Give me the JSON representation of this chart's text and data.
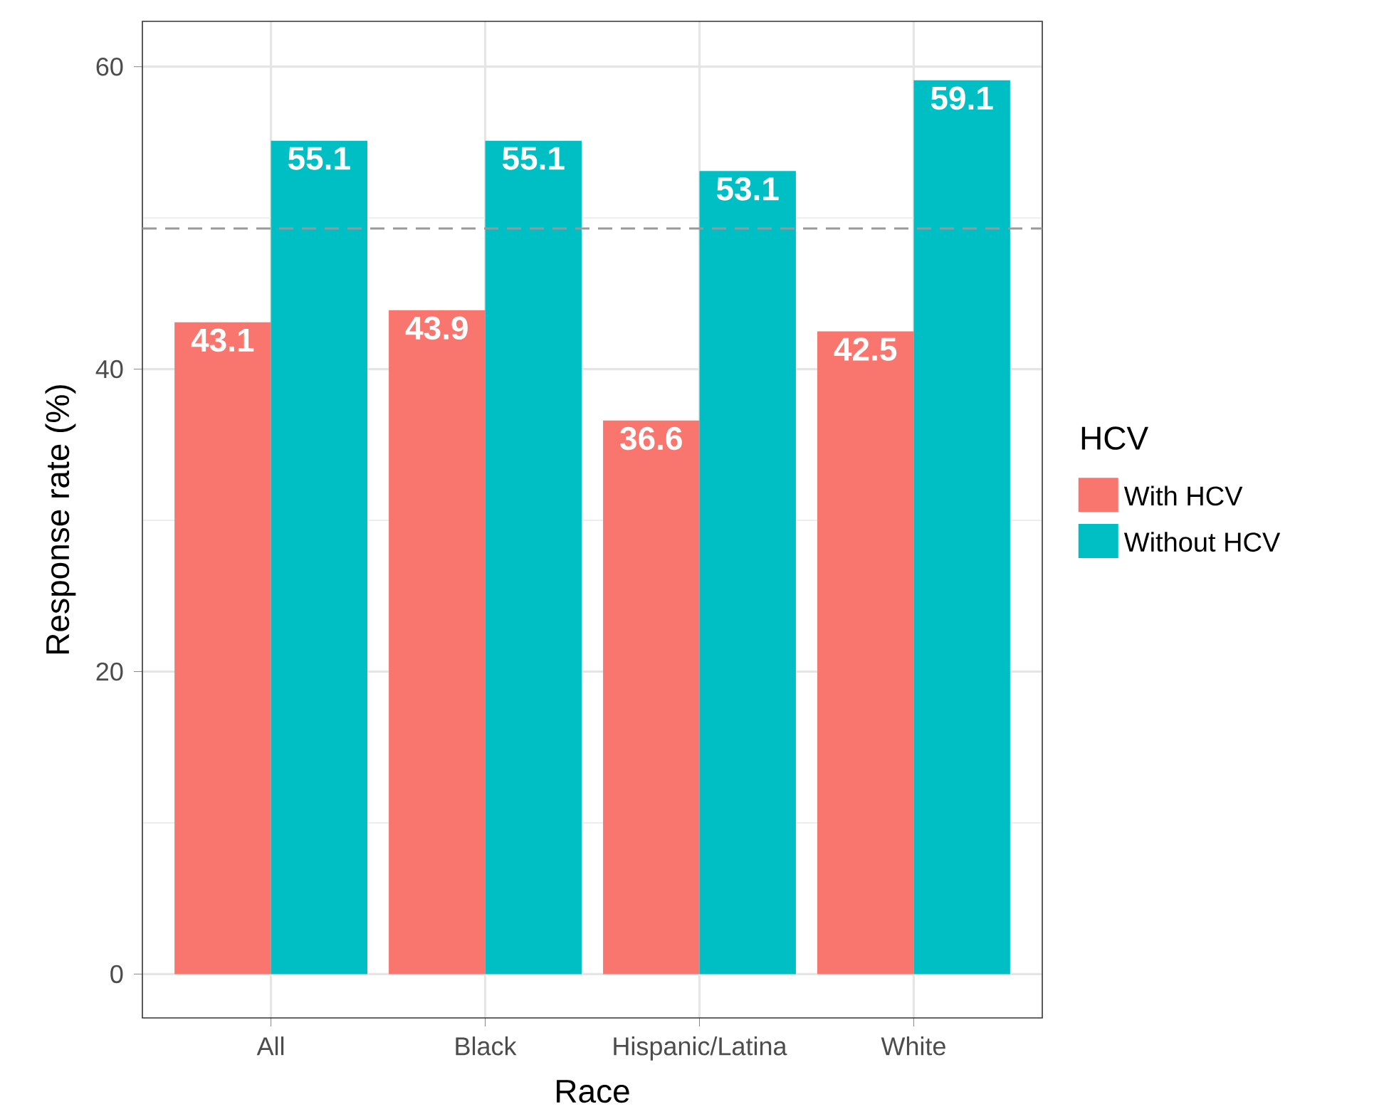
{
  "chart_data": {
    "type": "bar",
    "xlabel": "Race",
    "ylabel": "Response rate (%)",
    "legend_title": "HCV",
    "categories": [
      "All",
      "Black",
      "Hispanic/Latina",
      "White"
    ],
    "series": [
      {
        "name": "With HCV",
        "color": "#f8766d",
        "values": [
          43.1,
          43.9,
          36.6,
          42.5
        ]
      },
      {
        "name": "Without HCV",
        "color": "#00bfc4",
        "values": [
          55.1,
          55.1,
          53.1,
          59.1
        ]
      }
    ],
    "ylim": [
      -2.9,
      63
    ],
    "yticks": [
      0,
      20,
      40,
      60
    ],
    "grid": true,
    "legend": "right",
    "data_labels": true,
    "ref_lines": [
      {
        "axis": "y",
        "value": 49.3,
        "color": "#999999",
        "line_style": "dashed"
      }
    ]
  }
}
